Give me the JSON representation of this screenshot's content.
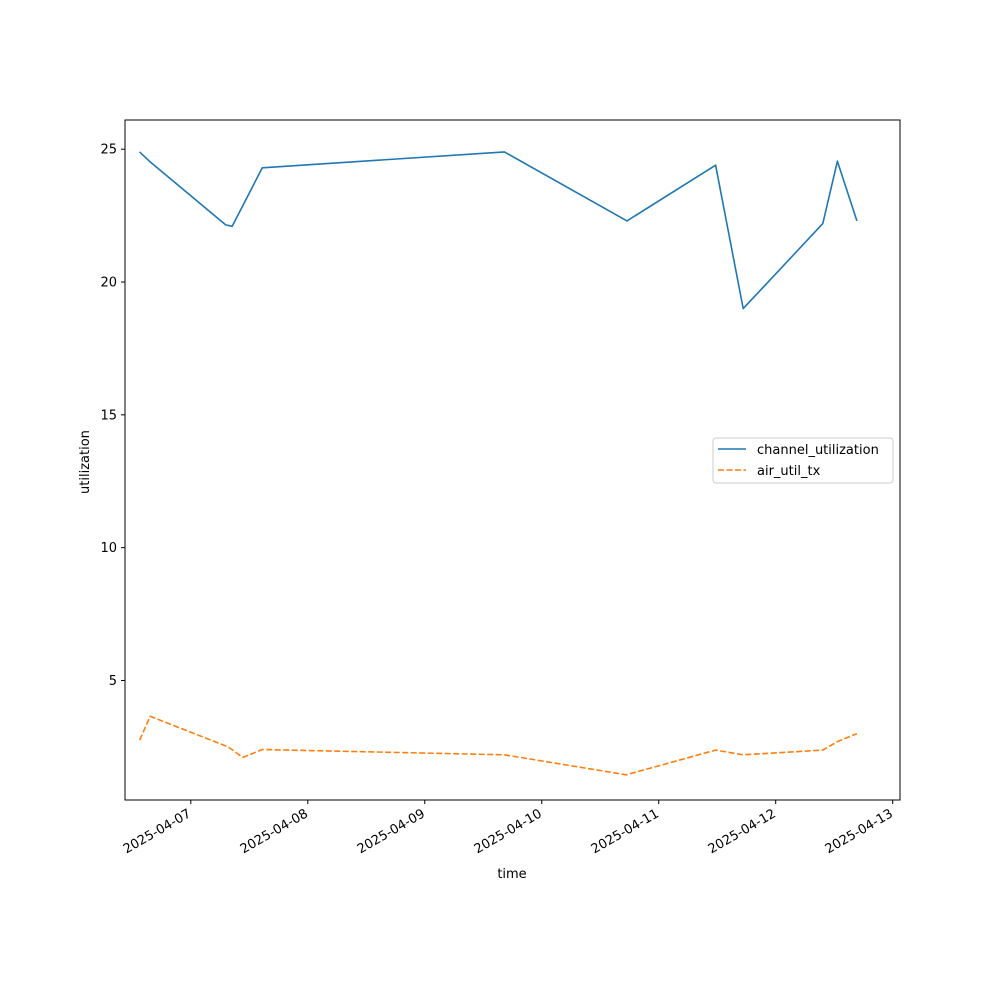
{
  "chart_data": {
    "type": "line",
    "title": "",
    "xlabel": "time",
    "ylabel": "utilization",
    "x_tick_labels": [
      "2025-04-07",
      "2025-04-08",
      "2025-04-09",
      "2025-04-10",
      "2025-04-11",
      "2025-04-12",
      "2025-04-13"
    ],
    "y_ticks": [
      5,
      10,
      15,
      20,
      25
    ],
    "xlim": [
      "2025-04-06 10:30",
      "2025-04-13 01:30"
    ],
    "ylim": [
      0.5,
      26.1
    ],
    "grid": false,
    "legend_position": "center-right",
    "series": [
      {
        "name": "channel_utilization",
        "color": "#1f77b4",
        "style": "solid",
        "points": [
          {
            "x": "2025-04-06 13:30",
            "y": 24.9
          },
          {
            "x": "2025-04-06 15:30",
            "y": 24.55
          },
          {
            "x": "2025-04-07 07:10",
            "y": 22.15
          },
          {
            "x": "2025-04-07 08:30",
            "y": 22.1
          },
          {
            "x": "2025-04-07 14:40",
            "y": 24.3
          },
          {
            "x": "2025-04-09 16:20",
            "y": 24.9
          },
          {
            "x": "2025-04-10 17:30",
            "y": 22.3
          },
          {
            "x": "2025-04-11 11:40",
            "y": 24.4
          },
          {
            "x": "2025-04-11 17:20",
            "y": 19.0
          },
          {
            "x": "2025-04-12 09:40",
            "y": 22.2
          },
          {
            "x": "2025-04-12 12:40",
            "y": 24.55
          },
          {
            "x": "2025-04-12 16:40",
            "y": 22.3
          }
        ]
      },
      {
        "name": "air_util_tx",
        "color": "#ff7f0e",
        "style": "dashed",
        "points": [
          {
            "x": "2025-04-06 13:30",
            "y": 2.75
          },
          {
            "x": "2025-04-06 15:40",
            "y": 3.65
          },
          {
            "x": "2025-04-07 07:40",
            "y": 2.5
          },
          {
            "x": "2025-04-07 10:40",
            "y": 2.1
          },
          {
            "x": "2025-04-07 14:40",
            "y": 2.4
          },
          {
            "x": "2025-04-09 16:20",
            "y": 2.2
          },
          {
            "x": "2025-04-10 17:20",
            "y": 1.45
          },
          {
            "x": "2025-04-11 11:40",
            "y": 2.38
          },
          {
            "x": "2025-04-11 17:20",
            "y": 2.2
          },
          {
            "x": "2025-04-12 09:40",
            "y": 2.38
          },
          {
            "x": "2025-04-12 12:40",
            "y": 2.7
          },
          {
            "x": "2025-04-12 16:40",
            "y": 3.0
          }
        ]
      }
    ]
  }
}
